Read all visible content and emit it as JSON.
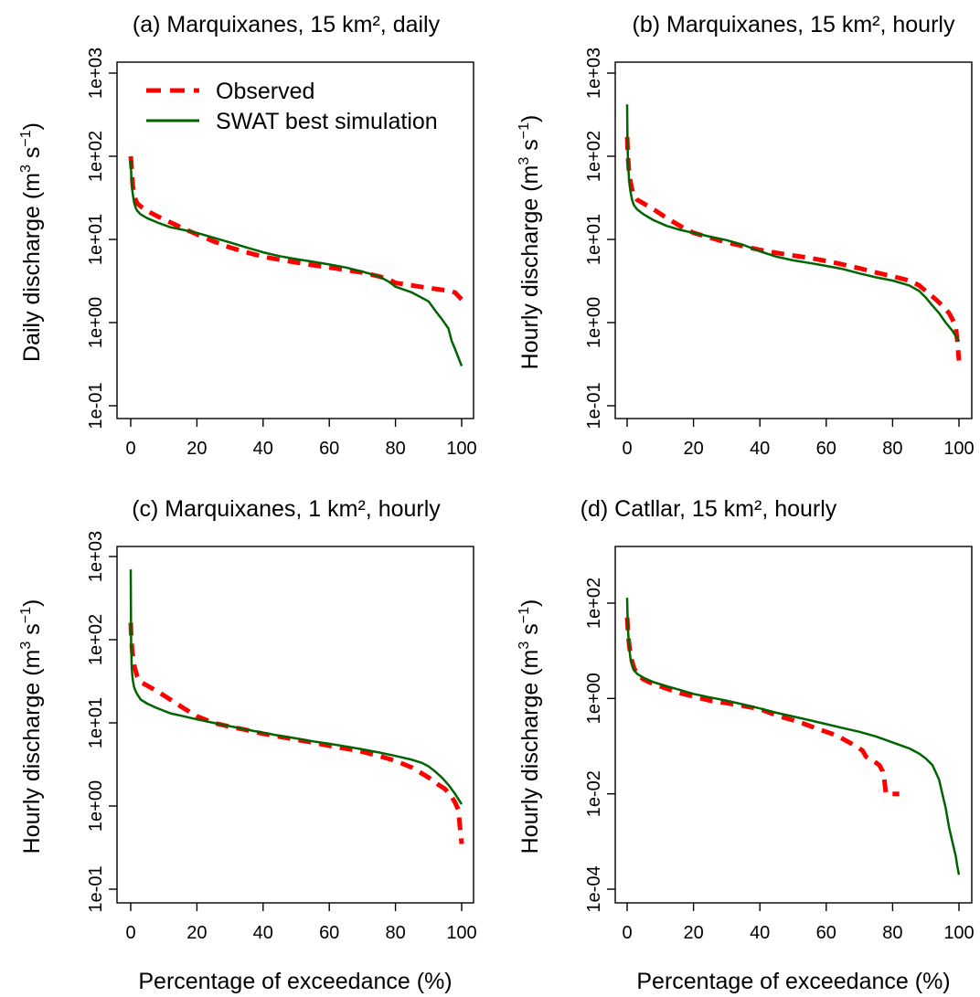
{
  "colors": {
    "observed": "#ff0000",
    "simulation": "#006400"
  },
  "legend": {
    "placement": "top-left of panel (a)",
    "entries": [
      {
        "label": "Observed",
        "color": "#ff0000",
        "style": "dashed"
      },
      {
        "label": "SWAT best simulation",
        "color": "#006400",
        "style": "solid"
      }
    ]
  },
  "chart_data": [
    {
      "type": "line",
      "title": "(a) Marquixanes, 15 km², daily",
      "xlabel": "Percentage of exceedance (%)",
      "ylabel": "Daily discharge",
      "yunit_base": "(m",
      "yunit_sup1": "3",
      "yunit_mid": " s",
      "yunit_sup2": "−1",
      "yunit_end": ")",
      "yscale": "log",
      "xlim": [
        0,
        100
      ],
      "ylim": [
        0.1,
        1000
      ],
      "xticks": [
        0,
        20,
        40,
        60,
        80,
        100
      ],
      "yticks": [
        0.1,
        1,
        10,
        100,
        1000
      ],
      "ytick_labels": [
        "1e-01",
        "1e+00",
        "1e+01",
        "1e+02",
        "1e+03"
      ],
      "series": [
        {
          "name": "Observed",
          "x": [
            0,
            0.3,
            0.6,
            1,
            1.5,
            2,
            3,
            5,
            8,
            12,
            16,
            20,
            25,
            30,
            35,
            40,
            45,
            50,
            55,
            60,
            65,
            70,
            75,
            78,
            80,
            85,
            90,
            95,
            98,
            100
          ],
          "y": [
            100,
            70,
            45,
            35,
            30,
            27,
            25,
            22,
            19,
            16,
            13.5,
            11.5,
            9.5,
            8,
            7,
            6.2,
            5.7,
            5.3,
            4.9,
            4.6,
            4.3,
            4.0,
            3.6,
            3.3,
            3.0,
            2.8,
            2.6,
            2.45,
            2.3,
            1.9
          ]
        },
        {
          "name": "SWAT best simulation",
          "x": [
            0,
            0.2,
            0.5,
            1,
            1.5,
            2,
            3,
            5,
            8,
            12,
            16,
            20,
            25,
            30,
            35,
            40,
            45,
            50,
            55,
            60,
            65,
            70,
            75,
            78,
            80,
            85,
            90,
            92,
            94,
            96,
            97,
            98,
            99,
            100
          ],
          "y": [
            90,
            55,
            38,
            28,
            24,
            22,
            20,
            18,
            16,
            14,
            13,
            12,
            10.5,
            9.2,
            8,
            7,
            6.3,
            5.8,
            5.4,
            5.0,
            4.6,
            4.1,
            3.6,
            3.1,
            2.7,
            2.3,
            1.8,
            1.4,
            1.1,
            0.85,
            0.6,
            0.48,
            0.38,
            0.3
          ]
        }
      ]
    },
    {
      "type": "line",
      "title": "(b) Marquixanes, 15 km², hourly",
      "xlabel": "Percentage of exceedance (%)",
      "ylabel": "Hourly discharge",
      "yunit_base": "(m",
      "yunit_sup1": "3",
      "yunit_mid": " s",
      "yunit_sup2": "−1",
      "yunit_end": ")",
      "yscale": "log",
      "xlim": [
        0,
        100
      ],
      "ylim": [
        0.1,
        1000
      ],
      "xticks": [
        0,
        20,
        40,
        60,
        80,
        100
      ],
      "yticks": [
        0.1,
        1,
        10,
        100,
        1000
      ],
      "ytick_labels": [
        "1e-01",
        "1e+00",
        "1e+01",
        "1e+02",
        "1e+03"
      ],
      "series": [
        {
          "name": "Observed",
          "x": [
            0,
            0.2,
            0.5,
            1,
            1.5,
            2,
            3,
            5,
            8,
            12,
            16,
            20,
            25,
            30,
            35,
            40,
            45,
            50,
            55,
            60,
            65,
            70,
            75,
            80,
            85,
            88,
            90,
            93,
            95,
            97,
            98,
            99,
            99.5,
            100
          ],
          "y": [
            170,
            110,
            70,
            50,
            40,
            34,
            30,
            27,
            23,
            18,
            14.5,
            12,
            10.5,
            9.2,
            8.3,
            7.5,
            6.9,
            6.4,
            6.0,
            5.5,
            5.0,
            4.5,
            4.0,
            3.6,
            3.2,
            2.8,
            2.4,
            1.9,
            1.6,
            1.3,
            1.1,
            0.9,
            0.6,
            0.35
          ]
        },
        {
          "name": "SWAT best simulation",
          "x": [
            0,
            0.1,
            0.3,
            0.6,
            1,
            1.5,
            2,
            3,
            5,
            8,
            12,
            16,
            20,
            25,
            30,
            35,
            40,
            45,
            50,
            55,
            60,
            65,
            70,
            75,
            80,
            85,
            88,
            90,
            92,
            94,
            96,
            98,
            100
          ],
          "y": [
            420,
            150,
            80,
            50,
            38,
            30,
            26,
            23,
            20,
            17,
            14.5,
            13,
            12,
            10.8,
            9.8,
            8.6,
            7.2,
            6.2,
            5.6,
            5.2,
            4.8,
            4.4,
            3.9,
            3.5,
            3.2,
            2.8,
            2.4,
            2.0,
            1.6,
            1.3,
            1.0,
            0.8,
            0.6
          ]
        }
      ]
    },
    {
      "type": "line",
      "title": "(c) Marquixanes, 1 km², hourly",
      "xlabel": "Percentage of exceedance (%)",
      "ylabel": "Hourly discharge",
      "yunit_base": "(m",
      "yunit_sup1": "3",
      "yunit_mid": " s",
      "yunit_sup2": "−1",
      "yunit_end": ")",
      "yscale": "log",
      "xlim": [
        0,
        100
      ],
      "ylim": [
        0.1,
        1000
      ],
      "xticks": [
        0,
        20,
        40,
        60,
        80,
        100
      ],
      "yticks": [
        0.1,
        1,
        10,
        100,
        1000
      ],
      "ytick_labels": [
        "1e-01",
        "1e+00",
        "1e+01",
        "1e+02",
        "1e+03"
      ],
      "series": [
        {
          "name": "Observed",
          "x": [
            0,
            0.2,
            0.5,
            1,
            1.5,
            2,
            3,
            5,
            8,
            12,
            16,
            20,
            25,
            30,
            35,
            40,
            45,
            50,
            55,
            60,
            65,
            70,
            75,
            80,
            85,
            90,
            93,
            95,
            97,
            98,
            99,
            99.5,
            100
          ],
          "y": [
            160,
            100,
            70,
            50,
            42,
            36,
            31,
            28,
            24,
            19,
            15,
            12,
            10,
            9,
            8.2,
            7.4,
            6.8,
            6.3,
            5.8,
            5.3,
            4.9,
            4.5,
            4.0,
            3.5,
            2.9,
            2.2,
            1.8,
            1.6,
            1.3,
            1.1,
            0.9,
            0.55,
            0.35
          ]
        },
        {
          "name": "SWAT best simulation",
          "x": [
            0,
            0.1,
            0.3,
            0.6,
            1,
            1.5,
            2,
            3,
            5,
            8,
            12,
            16,
            20,
            25,
            30,
            35,
            40,
            45,
            50,
            55,
            60,
            65,
            70,
            75,
            80,
            85,
            88,
            90,
            92,
            94,
            96,
            98,
            100
          ],
          "y": [
            700,
            100,
            45,
            33,
            27,
            24,
            22,
            19,
            17,
            15,
            13,
            12,
            11,
            10,
            9.1,
            8.3,
            7.6,
            7.0,
            6.5,
            6.0,
            5.6,
            5.2,
            4.8,
            4.4,
            4.0,
            3.6,
            3.3,
            3.0,
            2.6,
            2.2,
            1.8,
            1.4,
            1.05
          ]
        }
      ]
    },
    {
      "type": "line",
      "title": "(d) Catllar, 15 km², hourly",
      "xlabel": "Percentage of exceedance (%)",
      "ylabel": "Hourly discharge",
      "yunit_base": "(m",
      "yunit_sup1": "3",
      "yunit_mid": " s",
      "yunit_sup2": "−1",
      "yunit_end": ")",
      "yscale": "log",
      "xlim": [
        0,
        100
      ],
      "ylim": [
        0.0001,
        10000
      ],
      "xticks": [
        0,
        20,
        40,
        60,
        80,
        100
      ],
      "yticks": [
        0.0001,
        0.01,
        1,
        100
      ],
      "ytick_labels": [
        "1e-04",
        "1e-02",
        "1e+00",
        "1e+02"
      ],
      "series": [
        {
          "name": "Observed",
          "x": [
            0,
            0.3,
            0.7,
            1.2,
            2,
            3,
            5,
            8,
            12,
            16,
            20,
            25,
            30,
            35,
            40,
            43,
            46,
            50,
            53,
            56,
            60,
            63,
            66,
            69,
            71,
            72,
            74,
            75,
            76,
            77,
            77.5,
            78,
            82
          ],
          "y": [
            50,
            22,
            12,
            7,
            4.5,
            3.2,
            2.5,
            2.0,
            1.6,
            1.3,
            1.1,
            0.9,
            0.8,
            0.7,
            0.6,
            0.5,
            0.42,
            0.35,
            0.3,
            0.25,
            0.2,
            0.17,
            0.13,
            0.1,
            0.08,
            0.06,
            0.05,
            0.045,
            0.04,
            0.03,
            0.02,
            0.01,
            0.01
          ]
        },
        {
          "name": "SWAT best simulation",
          "x": [
            0,
            0.1,
            0.3,
            0.6,
            1,
            1.5,
            2,
            3,
            5,
            8,
            12,
            16,
            20,
            25,
            30,
            35,
            40,
            45,
            50,
            55,
            60,
            65,
            70,
            75,
            80,
            85,
            88,
            90,
            92,
            94,
            95,
            96,
            97,
            98,
            99,
            99.5,
            100
          ],
          "y": [
            130,
            60,
            25,
            12,
            7,
            5,
            4,
            3.3,
            2.7,
            2.2,
            1.8,
            1.5,
            1.25,
            1.05,
            0.9,
            0.75,
            0.62,
            0.5,
            0.42,
            0.35,
            0.29,
            0.24,
            0.2,
            0.16,
            0.12,
            0.09,
            0.07,
            0.055,
            0.04,
            0.02,
            0.01,
            0.005,
            0.002,
            0.001,
            0.0005,
            0.0003,
            0.0002
          ]
        }
      ]
    }
  ]
}
